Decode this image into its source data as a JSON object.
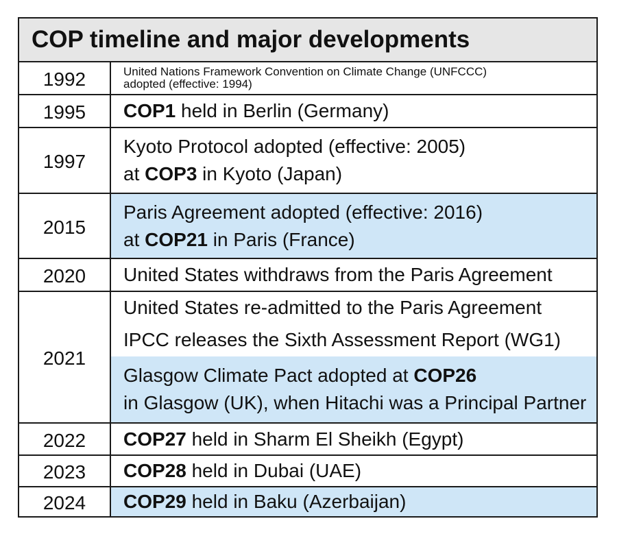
{
  "title": "COP timeline and major developments",
  "colors": {
    "highlight": "#cfe6f7",
    "header_bg": "#e6e6e6",
    "border": "#1a1a1a"
  },
  "rows": [
    {
      "year": "1992",
      "lines": [
        {
          "pre": "United Nations Framework Convention on Climate Change (UNFCCC)",
          "bold": "",
          "post": ""
        },
        {
          "pre": "adopted (effective: 1994)",
          "bold": "",
          "post": ""
        }
      ]
    },
    {
      "year": "1995",
      "lines": [
        {
          "pre": "",
          "bold": "COP1",
          "post": " held in Berlin (Germany)"
        }
      ]
    },
    {
      "year": "1997",
      "lines": [
        {
          "pre": "Kyoto Protocol adopted (effective: 2005)",
          "bold": "",
          "post": ""
        },
        {
          "pre": "at ",
          "bold": "COP3",
          "post": " in Kyoto (Japan)"
        }
      ]
    },
    {
      "year": "2015",
      "highlight": true,
      "lines": [
        {
          "pre": "Paris Agreement adopted (effective: 2016)",
          "bold": "",
          "post": ""
        },
        {
          "pre": "at ",
          "bold": "COP21",
          "post": " in Paris (France)"
        }
      ]
    },
    {
      "year": "2020",
      "lines": [
        {
          "pre": "United States withdraws from the Paris Agreement",
          "bold": "",
          "post": ""
        }
      ]
    },
    {
      "year": "2021",
      "entries": [
        {
          "lines": [
            {
              "pre": "United States re-admitted to the Paris Agreement",
              "bold": "",
              "post": ""
            }
          ]
        },
        {
          "lines": [
            {
              "pre": "IPCC releases the Sixth Assessment Report (WG1)",
              "bold": "",
              "post": ""
            }
          ]
        },
        {
          "highlight": true,
          "lines": [
            {
              "pre": "Glasgow Climate Pact adopted at ",
              "bold": "COP26",
              "post": ""
            },
            {
              "pre": "in Glasgow (UK), when Hitachi was a Principal Partner",
              "bold": "",
              "post": ""
            }
          ]
        }
      ]
    },
    {
      "year": "2022",
      "lines": [
        {
          "pre": "",
          "bold": "COP27",
          "post": " held in Sharm El Sheikh (Egypt)"
        }
      ]
    },
    {
      "year": "2023",
      "lines": [
        {
          "pre": "",
          "bold": "COP28",
          "post": " held in Dubai (UAE)"
        }
      ]
    },
    {
      "year": "2024",
      "highlight": true,
      "lines": [
        {
          "pre": "",
          "bold": "COP29",
          "post": " held in Baku (Azerbaijan)"
        }
      ]
    }
  ]
}
